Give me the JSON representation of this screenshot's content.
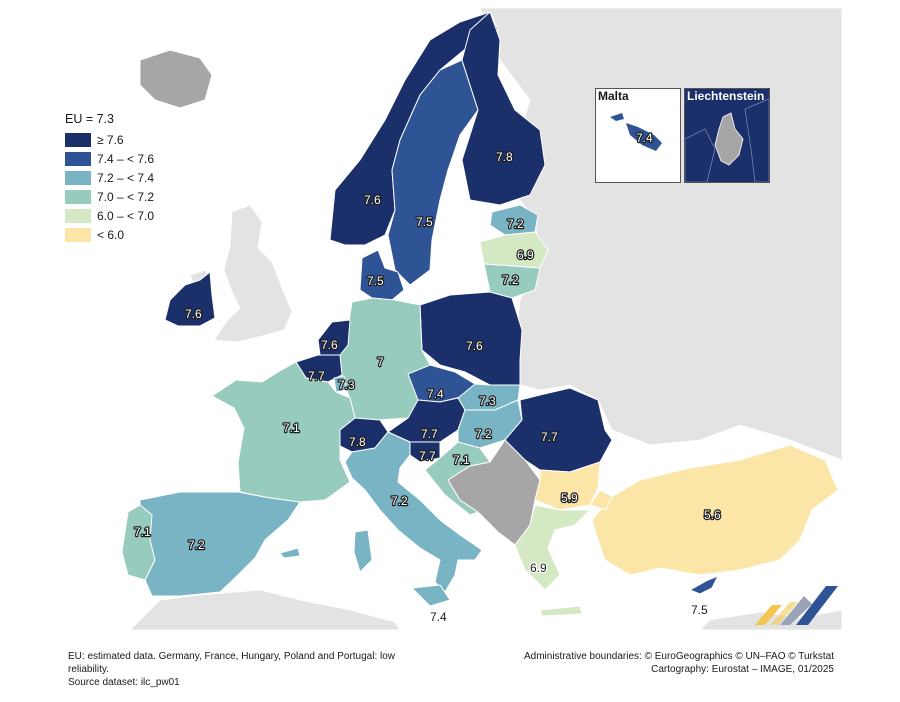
{
  "legend": {
    "title": "EU = 7.3",
    "classes": [
      {
        "label": "≥ 7.6",
        "color": "#1b2f6b"
      },
      {
        "label": "7.4 – < 7.6",
        "color": "#2f5496"
      },
      {
        "label": "7.2 – < 7.4",
        "color": "#79b4c4"
      },
      {
        "label": "7.0 – < 7.2",
        "color": "#96cbbd"
      },
      {
        "label": "6.0 – < 7.0",
        "color": "#d5e8c4"
      },
      {
        "label": "< 6.0",
        "color": "#fbe5a7"
      }
    ]
  },
  "colors": {
    "no_data": "#a6a6a6",
    "non_eu": "#e3e3e3",
    "sea": "#ffffff",
    "border": "#ffffff"
  },
  "insets": {
    "malta": {
      "title": "Malta",
      "value": "7.4"
    },
    "liechtenstein": {
      "title": "Liechtenstein"
    }
  },
  "values": {
    "finland": "7.8",
    "sweden": "7.5",
    "norway": "7.6",
    "estonia": "7.2",
    "latvia": "6.9",
    "lithuania": "7.2",
    "denmark": "7.5",
    "ireland": "7.6",
    "netherlands": "7.6",
    "belgium": "7.7",
    "luxembourg": "7.3",
    "germany": "7",
    "poland": "7.6",
    "czechia": "7.4",
    "slovakia": "7.3",
    "hungary": "7.2",
    "austria": "7.7",
    "switzerland": "7.8",
    "slovenia": "7.7",
    "croatia": "7.1",
    "romania": "7.7",
    "bulgaria": "5.9",
    "turkey": "5.6",
    "france": "7.1",
    "spain": "7.2",
    "portugal": "7.1",
    "italy": "7.2",
    "greece": "6.9",
    "malta": "7.4",
    "cyprus": "7.5"
  },
  "footer": {
    "note_line1": "EU: estimated data. Germany, France, Hungary, Poland and Portugal: low",
    "note_line2": "reliability.",
    "source": "Source dataset: ilc_pw01",
    "admin": "Administrative boundaries: © EuroGeographics © UN–FAO © Turkstat",
    "carto": "Cartography: Eurostat – IMAGE, 01/2025"
  }
}
